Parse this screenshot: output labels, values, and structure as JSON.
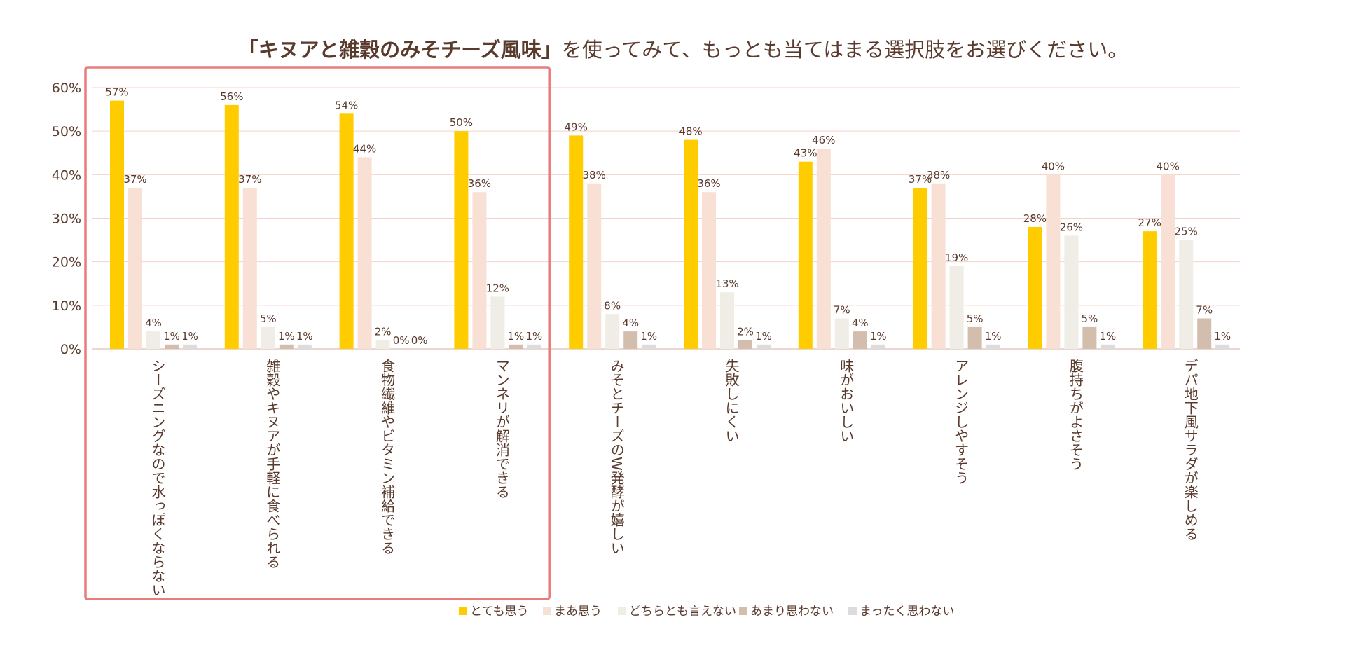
{
  "title": {
    "bold": "「キヌアと雑穀のみそチーズ風味」",
    "rest": "を使ってみて、もっとも当てはまる選択肢をお選びください。"
  },
  "chart_data": {
    "type": "bar",
    "title": "「キヌアと雑穀のみそチーズ風味」を使ってみて、もっとも当てはまる選択肢をお選びください。",
    "xlabel": "",
    "ylabel": "",
    "ylim": [
      0,
      60
    ],
    "yticks": [
      "0%",
      "10%",
      "20%",
      "30%",
      "40%",
      "50%",
      "60%"
    ],
    "categories": [
      "シーズニングなので水っぽくならない",
      "雑穀やキヌアが手軽に食べられる",
      "食物繊維やビタミン補給できる",
      "マンネリが解消できる",
      "みそとチーズのW発酵が嬉しい",
      "失敗しにくい",
      "味がおいしい",
      "アレンジしやすそう",
      "腹持ちがよさそう",
      "デパ地下風サラダが楽しめる"
    ],
    "series": [
      {
        "name": "とても思う",
        "color": "#FFCC00",
        "values": [
          57,
          56,
          54,
          50,
          49,
          48,
          43,
          37,
          28,
          27
        ],
        "labels": [
          "57%",
          "56%",
          "54%",
          "50%",
          "49%",
          "48%",
          "43%",
          "37%",
          "28%",
          "27%"
        ]
      },
      {
        "name": "まあ思う",
        "color": "#F8E1D4",
        "values": [
          37,
          37,
          44,
          36,
          38,
          36,
          46,
          38,
          40,
          40
        ],
        "labels": [
          "37%",
          "37%",
          "44%",
          "36%",
          "38%",
          "36%",
          "46%",
          "38%",
          "40%",
          "40%"
        ]
      },
      {
        "name": "どちらとも言えない",
        "color": "#F0ECE6",
        "values": [
          4,
          5,
          2,
          12,
          8,
          13,
          7,
          19,
          26,
          25
        ],
        "labels": [
          "4%",
          "5%",
          "2%",
          "12%",
          "8%",
          "13%",
          "7%",
          "19%",
          "26%",
          "25%"
        ]
      },
      {
        "name": "あまり思わない",
        "color": "#D3BEAE",
        "values": [
          1,
          1,
          0,
          1,
          4,
          2,
          4,
          5,
          5,
          7
        ],
        "labels": [
          "1%",
          "1%",
          "0%",
          "1%",
          "4%",
          "2%",
          "4%",
          "5%",
          "5%",
          "7%"
        ]
      },
      {
        "name": "まったく思わない",
        "color": "#DCDCDC",
        "values": [
          1,
          1,
          0,
          1,
          1,
          1,
          1,
          1,
          1,
          1
        ],
        "labels": [
          "1%",
          "1%",
          "0%",
          "1%",
          "1%",
          "1%",
          "1%",
          "1%",
          "1%",
          "1%"
        ]
      }
    ],
    "grid": true,
    "grid_color": "#F4D2CC",
    "text_color": "#5A3A2C",
    "highlight_color": "#E87B7B",
    "highlight_categories": [
      0,
      1,
      2,
      3
    ],
    "legend_position": "bottom"
  }
}
